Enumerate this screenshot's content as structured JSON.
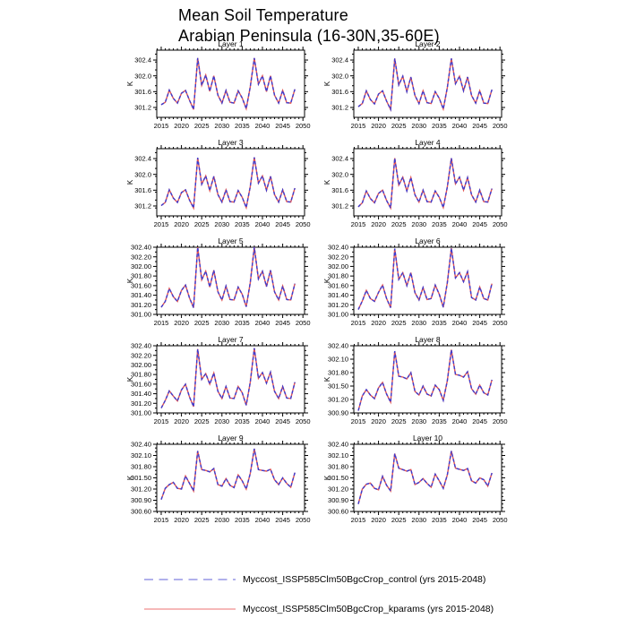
{
  "title": {
    "line1": "Mean Soil Temperature",
    "line2": "Arabian Peninsula (16-30N,35-60E)"
  },
  "legend": {
    "entries": [
      {
        "label": "Myccost_ISSP585Clm50BgcCrop_control (yrs 2015-2048)",
        "style": "dashed",
        "color": "#8080e0"
      },
      {
        "label": "Myccost_ISSP585Clm50BgcCrop_kparams (yrs 2015-2048)",
        "style": "solid",
        "color": "#f08d8d"
      }
    ]
  },
  "chart_data": {
    "type": "line",
    "ylabel": "K",
    "xlim": [
      2013.9,
      2050.4
    ],
    "xticks": [
      2015,
      2020,
      2025,
      2030,
      2035,
      2040,
      2045,
      2050
    ],
    "x_years": [
      2015,
      2016,
      2017,
      2018,
      2019,
      2020,
      2021,
      2022,
      2023,
      2024,
      2025,
      2026,
      2027,
      2028,
      2029,
      2030,
      2031,
      2032,
      2033,
      2034,
      2035,
      2036,
      2037,
      2038,
      2039,
      2040,
      2041,
      2042,
      2043,
      2044,
      2045,
      2046,
      2047,
      2048
    ],
    "series": [
      {
        "name": "control",
        "style": "dashed",
        "color": "#3c3cd0"
      },
      {
        "name": "kparams",
        "style": "solid",
        "color": "#e05353"
      }
    ],
    "series_note": "control and kparams curves overlap; each panel's values are shared by both series",
    "panels": [
      {
        "title": "Layer 1",
        "ylim": [
          300.95,
          302.65
        ],
        "yticks": [
          301.2,
          301.6,
          302.0,
          302.4
        ],
        "ydecimals": 1,
        "yminor": 0.2,
        "values": [
          301.27,
          301.33,
          301.64,
          301.43,
          301.31,
          301.56,
          301.63,
          301.38,
          301.15,
          302.45,
          301.76,
          302.02,
          301.61,
          302.0,
          301.51,
          301.31,
          301.63,
          301.33,
          301.31,
          301.62,
          301.44,
          301.17,
          301.72,
          302.45,
          301.79,
          302.0,
          301.6,
          302.0,
          301.51,
          301.31,
          301.63,
          301.32,
          301.31,
          301.66
        ]
      },
      {
        "title": "Layer 2",
        "ylim": [
          300.95,
          302.65
        ],
        "yticks": [
          301.2,
          301.6,
          302.0,
          302.4
        ],
        "ydecimals": 1,
        "yminor": 0.2,
        "values": [
          301.22,
          301.3,
          301.62,
          301.4,
          301.29,
          301.54,
          301.62,
          301.36,
          301.15,
          302.44,
          301.77,
          301.99,
          301.6,
          301.97,
          301.5,
          301.3,
          301.62,
          301.32,
          301.3,
          301.6,
          301.43,
          301.16,
          301.7,
          302.44,
          301.8,
          301.99,
          301.62,
          301.97,
          301.5,
          301.31,
          301.62,
          301.31,
          301.3,
          301.65
        ]
      },
      {
        "title": "Layer 3",
        "ylim": [
          300.95,
          302.65
        ],
        "yticks": [
          301.2,
          301.6,
          302.0,
          302.4
        ],
        "ydecimals": 1,
        "yminor": 0.2,
        "values": [
          301.21,
          301.29,
          301.61,
          301.4,
          301.29,
          301.54,
          301.61,
          301.35,
          301.15,
          302.42,
          301.75,
          301.96,
          301.59,
          301.95,
          301.49,
          301.3,
          301.61,
          301.31,
          301.3,
          301.59,
          301.42,
          301.16,
          301.69,
          302.43,
          301.78,
          301.96,
          301.6,
          301.95,
          301.49,
          301.3,
          301.61,
          301.31,
          301.3,
          301.65
        ]
      },
      {
        "title": "Layer 4",
        "ylim": [
          300.95,
          302.65
        ],
        "yticks": [
          301.2,
          301.6,
          302.0,
          302.4
        ],
        "ydecimals": 1,
        "yminor": 0.2,
        "values": [
          301.18,
          301.28,
          301.58,
          301.39,
          301.28,
          301.52,
          301.6,
          301.34,
          301.15,
          302.41,
          301.73,
          301.93,
          301.58,
          301.92,
          301.48,
          301.3,
          301.6,
          301.31,
          301.3,
          301.58,
          301.42,
          301.16,
          301.68,
          302.41,
          301.76,
          301.93,
          301.6,
          301.92,
          301.48,
          301.3,
          301.6,
          301.31,
          301.3,
          301.64
        ]
      },
      {
        "title": "Layer 5",
        "ylim": [
          301.0,
          302.4
        ],
        "yticks": [
          301.0,
          301.2,
          301.4,
          301.6,
          301.8,
          302.0,
          302.2,
          302.4
        ],
        "ydecimals": 2,
        "yminor": 0.1,
        "values": [
          301.15,
          301.27,
          301.54,
          301.37,
          301.27,
          301.5,
          301.61,
          301.34,
          301.14,
          302.4,
          301.72,
          301.9,
          301.57,
          301.92,
          301.47,
          301.3,
          301.59,
          301.31,
          301.3,
          301.57,
          301.42,
          301.16,
          301.66,
          302.4,
          301.74,
          301.9,
          301.58,
          301.92,
          301.47,
          301.3,
          301.59,
          301.31,
          301.3,
          301.64
        ]
      },
      {
        "title": "Layer 6",
        "ylim": [
          301.0,
          302.4
        ],
        "yticks": [
          301.0,
          301.2,
          301.4,
          301.6,
          301.8,
          302.0,
          302.2,
          302.4
        ],
        "ydecimals": 2,
        "yminor": 0.1,
        "values": [
          301.1,
          301.28,
          301.5,
          301.33,
          301.27,
          301.46,
          301.61,
          301.33,
          301.14,
          302.37,
          301.73,
          301.87,
          301.6,
          301.87,
          301.45,
          301.3,
          301.56,
          301.31,
          301.33,
          301.61,
          301.42,
          301.15,
          301.66,
          302.38,
          301.76,
          301.87,
          301.68,
          301.89,
          301.35,
          301.3,
          301.57,
          301.33,
          301.3,
          301.64
        ]
      },
      {
        "title": "Layer 7",
        "ylim": [
          301.0,
          302.4
        ],
        "yticks": [
          301.0,
          301.2,
          301.4,
          301.6,
          301.8,
          302.0,
          302.2,
          302.4
        ],
        "ydecimals": 2,
        "yminor": 0.1,
        "values": [
          301.1,
          301.26,
          301.46,
          301.35,
          301.25,
          301.48,
          301.6,
          301.33,
          301.13,
          302.33,
          301.7,
          301.82,
          301.6,
          301.83,
          301.45,
          301.3,
          301.55,
          301.31,
          301.3,
          301.55,
          301.42,
          301.16,
          301.64,
          302.35,
          301.72,
          301.84,
          301.62,
          301.85,
          301.45,
          301.3,
          301.55,
          301.31,
          301.3,
          301.64
        ]
      },
      {
        "title": "Layer 8",
        "ylim": [
          300.9,
          302.4
        ],
        "yticks": [
          300.9,
          301.2,
          301.5,
          301.8,
          302.1,
          302.4
        ],
        "ydecimals": 2,
        "yminor": 0.1,
        "values": [
          300.95,
          301.28,
          301.42,
          301.3,
          301.22,
          301.46,
          301.58,
          301.32,
          301.14,
          302.28,
          301.72,
          301.7,
          301.66,
          301.8,
          301.38,
          301.3,
          301.5,
          301.32,
          301.28,
          301.52,
          301.42,
          301.18,
          301.62,
          302.31,
          301.76,
          301.74,
          301.7,
          301.82,
          301.44,
          301.32,
          301.52,
          301.35,
          301.3,
          301.64
        ]
      },
      {
        "title": "Layer 9",
        "ylim": [
          300.6,
          302.4
        ],
        "yticks": [
          300.6,
          300.9,
          301.2,
          301.5,
          301.8,
          302.1,
          302.4
        ],
        "ydecimals": 2,
        "yminor": 0.1,
        "values": [
          300.92,
          301.22,
          301.32,
          301.38,
          301.22,
          301.2,
          301.55,
          301.35,
          301.15,
          302.22,
          301.72,
          301.7,
          301.66,
          301.75,
          301.32,
          301.28,
          301.48,
          301.3,
          301.24,
          301.58,
          301.42,
          301.2,
          301.62,
          302.28,
          301.72,
          301.7,
          301.68,
          301.73,
          301.45,
          301.32,
          301.5,
          301.35,
          301.25,
          301.64
        ]
      },
      {
        "title": "Layer 10",
        "ylim": [
          300.6,
          302.4
        ],
        "yticks": [
          300.6,
          300.9,
          301.2,
          301.5,
          301.8,
          302.1,
          302.4
        ],
        "ydecimals": 2,
        "yminor": 0.1,
        "values": [
          300.8,
          301.2,
          301.33,
          301.36,
          301.22,
          301.18,
          301.54,
          301.3,
          301.15,
          302.15,
          301.76,
          301.72,
          301.68,
          301.72,
          301.32,
          301.38,
          301.48,
          301.35,
          301.25,
          301.6,
          301.42,
          301.22,
          301.58,
          302.22,
          301.76,
          301.73,
          301.7,
          301.75,
          301.42,
          301.36,
          301.5,
          301.45,
          301.28,
          301.63
        ]
      }
    ]
  }
}
